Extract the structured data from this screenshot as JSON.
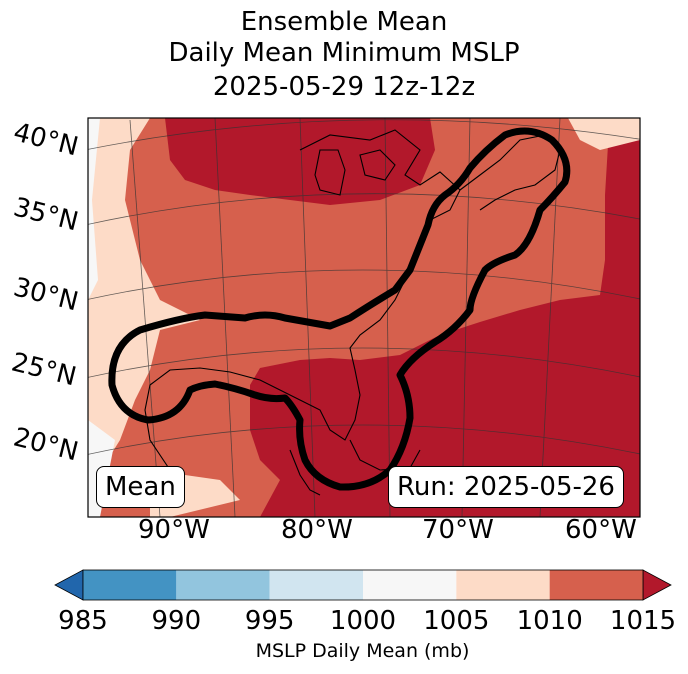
{
  "title_lines": [
    "Ensemble Mean",
    "Daily Mean Minimum MSLP",
    "2025-05-29 12z-12z"
  ],
  "map": {
    "lat_labels": [
      "40°N",
      "35°N",
      "30°N",
      "25°N",
      "20°N"
    ],
    "lon_labels": [
      "90°W",
      "80°W",
      "70°W",
      "60°W"
    ],
    "mean_box": "Mean",
    "run_box": "Run: 2025-05-26"
  },
  "colorbar": {
    "ticks": [
      "985",
      "990",
      "995",
      "1000",
      "1005",
      "1010",
      "1015"
    ],
    "label": "MSLP Daily Mean (mb)",
    "colors": [
      "#2166ac",
      "#4393c3",
      "#92c5de",
      "#d1e5f0",
      "#f7f7f7",
      "#fddbc7",
      "#d6604d",
      "#b2182b"
    ]
  }
}
